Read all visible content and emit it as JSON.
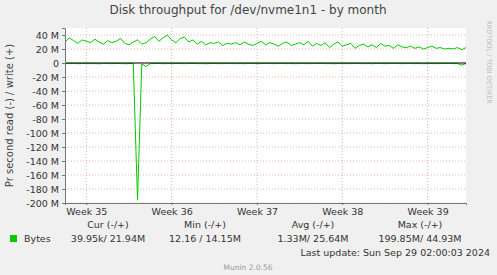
{
  "chart_data": {
    "type": "line",
    "title": "Disk throughput for /dev/nvme1n1 - by month",
    "y_label": "Pr second read (-) / write (+)",
    "x": [
      35.25,
      35.3,
      35.35,
      35.4,
      35.45,
      35.5,
      35.55,
      35.6,
      35.65,
      35.7,
      35.75,
      35.8,
      35.85,
      35.9,
      35.95,
      36.0,
      36.05,
      36.1,
      36.15,
      36.2,
      36.25,
      36.3,
      36.35,
      36.4,
      36.45,
      36.5,
      36.55,
      36.6,
      36.65,
      36.7,
      36.75,
      36.8,
      36.85,
      36.9,
      36.95,
      37.0,
      37.05,
      37.1,
      37.15,
      37.2,
      37.25,
      37.3,
      37.35,
      37.4,
      37.45,
      37.5,
      37.55,
      37.6,
      37.65,
      37.7,
      37.75,
      37.8,
      37.85,
      37.9,
      37.95,
      38.0,
      38.05,
      38.1,
      38.15,
      38.2,
      38.25,
      38.3,
      38.35,
      38.4,
      38.45,
      38.5,
      38.55,
      38.6,
      38.65,
      38.7,
      38.75,
      38.8,
      38.85,
      38.9,
      38.95,
      39.0,
      39.05,
      39.1,
      39.15,
      39.2,
      39.25,
      39.3,
      39.35,
      39.4,
      39.45,
      39.5,
      39.55,
      39.6,
      39.65,
      39.7,
      39.75,
      39.8,
      39.85,
      39.9,
      39.95
    ],
    "series": [
      {
        "name": "Bytes",
        "color": "#00cc00",
        "values": [
          30000000.0,
          36000000.0,
          32000000.0,
          28000000.0,
          33000000.0,
          31000000.0,
          29000000.0,
          34000000.0,
          30000000.0,
          27000000.0,
          32000000.0,
          29000000.0,
          31000000.0,
          35000000.0,
          28000000.0,
          26000000.0,
          30000000.0,
          33000000.0,
          27000000.0,
          29000000.0,
          34000000.0,
          38000000.0,
          31000000.0,
          36000000.0,
          40000000.0,
          33000000.0,
          29000000.0,
          35000000.0,
          37000000.0,
          30000000.0,
          33000000.0,
          27000000.0,
          31000000.0,
          26000000.0,
          29000000.0,
          28000000.0,
          30000000.0,
          25000000.0,
          28000000.0,
          27000000.0,
          29000000.0,
          26000000.0,
          30000000.0,
          27000000.0,
          25000000.0,
          28000000.0,
          31000000.0,
          26000000.0,
          29000000.0,
          27000000.0,
          24000000.0,
          28000000.0,
          30000000.0,
          25000000.0,
          27000000.0,
          29000000.0,
          26000000.0,
          31000000.0,
          24000000.0,
          28000000.0,
          25000000.0,
          29000000.0,
          22000000.0,
          27000000.0,
          30000000.0,
          24000000.0,
          26000000.0,
          28000000.0,
          21000000.0,
          25000000.0,
          27000000.0,
          23000000.0,
          26000000.0,
          22000000.0,
          28000000.0,
          24000000.0,
          25000000.0,
          21000000.0,
          26000000.0,
          23000000.0,
          22000000.0,
          24000000.0,
          21000000.0,
          23000000.0,
          20000000.0,
          22000000.0,
          24000000.0,
          21000000.0,
          22000000.0,
          20000000.0,
          21000000.0,
          20000000.0,
          22000000.0,
          19000000.0,
          22000000.0
        ]
      },
      {
        "color": "#00cc00",
        "values": [
          -800000.0,
          -900000.0,
          -700000.0,
          -1000000.0,
          -800000.0,
          -600000.0,
          -900000.0,
          -800000.0,
          -1100000.0,
          -700000.0,
          -800000.0,
          -900000.0,
          -700000.0,
          -800000.0,
          -1000000.0,
          -900000.0,
          -800000.0,
          -196000000.0,
          -1500000.0,
          -5000000.0,
          -900000.0,
          -800000.0,
          -700000.0,
          -1000000.0,
          -800000.0,
          -900000.0,
          -700000.0,
          -800000.0,
          -900000.0,
          -800000.0,
          -700000.0,
          -900000.0,
          -800000.0,
          -1000000.0,
          -800000.0,
          -700000.0,
          -900000.0,
          -800000.0,
          -800000.0,
          -700000.0,
          -900000.0,
          -800000.0,
          -1000000.0,
          -700000.0,
          -800000.0,
          -900000.0,
          -800000.0,
          -700000.0,
          -800000.0,
          -900000.0,
          -800000.0,
          -700000.0,
          -900000.0,
          -800000.0,
          -1000000.0,
          -800000.0,
          -700000.0,
          -900000.0,
          -800000.0,
          -800000.0,
          -700000.0,
          -900000.0,
          -800000.0,
          -1000000.0,
          -800000.0,
          -700000.0,
          -900000.0,
          -800000.0,
          -800000.0,
          -700000.0,
          -900000.0,
          -800000.0,
          -1000000.0,
          -700000.0,
          -800000.0,
          -900000.0,
          -800000.0,
          -700000.0,
          -800000.0,
          -900000.0,
          -800000.0,
          -700000.0,
          -900000.0,
          -800000.0,
          -1000000.0,
          -800000.0,
          -700000.0,
          -900000.0,
          -800000.0,
          -800000.0,
          -700000.0,
          -900000.0,
          -800000.0,
          -3000000.0,
          -800000.0
        ]
      }
    ],
    "xlim": [
      35.25,
      39.95
    ],
    "xticks": [
      {
        "value": 35.5,
        "label": "Week 35"
      },
      {
        "value": 36.5,
        "label": "Week 36"
      },
      {
        "value": 37.5,
        "label": "Week 37"
      },
      {
        "value": 38.5,
        "label": "Week 38"
      },
      {
        "value": 39.5,
        "label": "Week 39"
      }
    ],
    "ylim": [
      -200000000,
      50000000
    ],
    "yticks": [
      {
        "value": 40000000,
        "label": "40 M"
      },
      {
        "value": 20000000,
        "label": "20 M"
      },
      0,
      {
        "value": -20000000,
        "label": "-20 M"
      },
      {
        "value": -40000000,
        "label": "-40 M"
      },
      {
        "value": -60000000,
        "label": "-60 M"
      },
      {
        "value": -80000000,
        "label": "-80 M"
      },
      {
        "value": -100000000,
        "label": "-100 M"
      },
      {
        "value": -120000000,
        "label": "-120 M"
      },
      {
        "value": -140000000,
        "label": "-140 M"
      },
      {
        "value": -160000000,
        "label": "-160 M"
      },
      {
        "value": -180000000,
        "label": "-180 M"
      },
      {
        "value": -200000000,
        "label": "-200 M"
      }
    ],
    "grid": true,
    "summary": {
      "columns": [
        "Cur (-/+)",
        "Min (-/+)",
        "Avg (-/+)",
        "Max (-/+)"
      ],
      "values": [
        "39.95k/ 21.94M",
        "12.16 / 14.15M",
        "1.33M/ 25.64M",
        "199.85M/ 44.93M"
      ]
    },
    "last_update": "Last update: Sun Sep 29 02:00:03 2024",
    "footer": "Munin 2.0.56",
    "watermark": "RRDTOOL / TOBI OETIKER"
  }
}
